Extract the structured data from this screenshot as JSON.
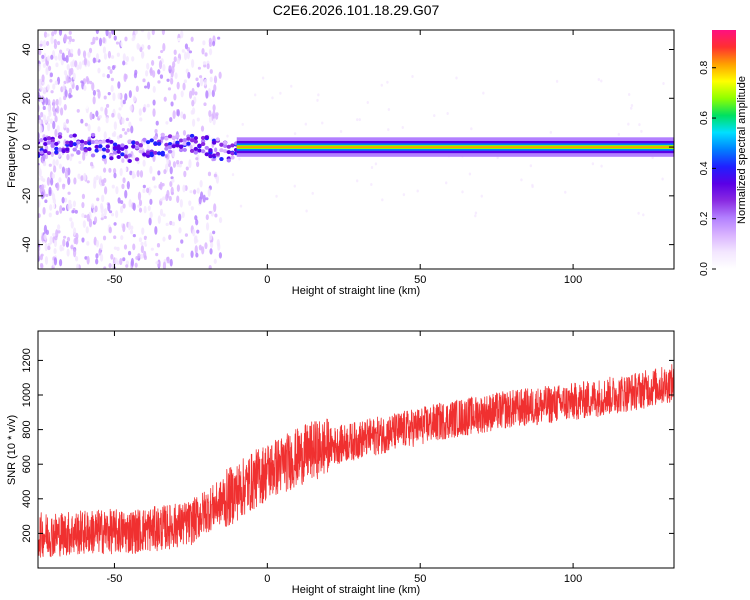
{
  "figure_title": "C2E6.2026.101.18.29.G07",
  "colors": {
    "snr_line": "#f03030",
    "colormap": [
      "#ffffff",
      "#f3e6ff",
      "#d9b3ff",
      "#b380ff",
      "#8a2be2",
      "#5a00e6",
      "#2020ff",
      "#0080ff",
      "#00e0ff",
      "#00e060",
      "#90ff00",
      "#ffff00",
      "#ffa000",
      "#ff3030",
      "#ff1080"
    ]
  },
  "chart_data": [
    {
      "type": "heatmap",
      "title": "",
      "xlabel": "Height of straight line (km)",
      "ylabel": "Frequency (Hz)",
      "xlim": [
        -75,
        133
      ],
      "ylim": [
        -50,
        48
      ],
      "xticks": [
        -50,
        0,
        50,
        100
      ],
      "yticks": [
        -40,
        -20,
        0,
        20,
        40
      ],
      "grid": false,
      "description_values": {
        "carrier_frequency_hz": 0,
        "noisy_region_height_km": [
          -75,
          -15
        ],
        "strong_carrier_height_km": [
          -10,
          133
        ]
      },
      "colorbar": {
        "label": "Normalized spectral amplitude",
        "range": [
          0.0,
          0.95
        ],
        "ticks": [
          "0.0",
          "0.2",
          "0.4",
          "0.6",
          "0.8"
        ],
        "tick_values": [
          0.0,
          0.2,
          0.4,
          0.6,
          0.8
        ]
      }
    },
    {
      "type": "line",
      "title": "",
      "xlabel": "Height of straight line (km)",
      "ylabel": "SNR (10 * v/v)",
      "xlim": [
        -75,
        133
      ],
      "ylim": [
        0,
        1370
      ],
      "xticks": [
        -50,
        0,
        50,
        100
      ],
      "yticks": [
        200,
        400,
        600,
        800,
        1000,
        1200
      ],
      "grid": false,
      "series": [
        {
          "name": "SNR",
          "x": [
            -75,
            -65,
            -55,
            -45,
            -35,
            -25,
            -20,
            -15,
            -10,
            -5,
            0,
            5,
            10,
            15,
            20,
            30,
            40,
            50,
            60,
            70,
            80,
            90,
            100,
            110,
            120,
            133
          ],
          "y": [
            190,
            200,
            210,
            210,
            230,
            260,
            330,
            380,
            440,
            500,
            560,
            600,
            640,
            680,
            700,
            740,
            780,
            820,
            860,
            890,
            920,
            940,
            960,
            990,
            1020,
            1070
          ]
        }
      ]
    }
  ]
}
